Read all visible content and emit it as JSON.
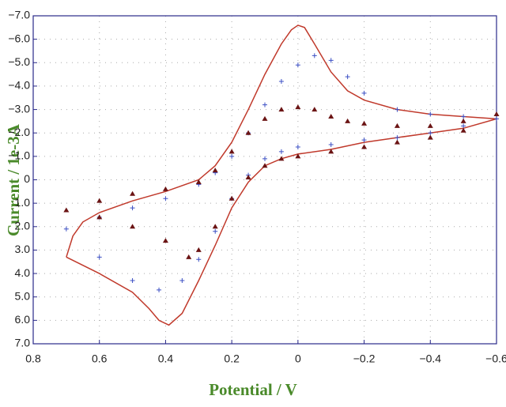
{
  "chart_data": {
    "type": "line",
    "xlabel": "Potential / V",
    "ylabel": "Current / 1e-3A",
    "xlim": [
      0.8,
      -0.6
    ],
    "xticks": [
      0.8,
      0.6,
      0.4,
      0.2,
      0,
      {
        "value": -0.2,
        "label": "−0.2"
      },
      {
        "value": -0.4,
        "label": "−0.4"
      },
      {
        "value": -0.6,
        "label": "−0.6"
      }
    ],
    "ylim": [
      7,
      -7
    ],
    "yticks": [
      {
        "value": -7,
        "label": "−7.0"
      },
      {
        "value": -6,
        "label": "−6.0"
      },
      {
        "value": -5,
        "label": "−5.0"
      },
      {
        "value": -4,
        "label": "−4.0"
      },
      {
        "value": -3,
        "label": "−3.0"
      },
      {
        "value": -2,
        "label": "−2.0"
      },
      {
        "value": -1,
        "label": "−1.0"
      },
      0,
      {
        "value": 1,
        "label": "1.0"
      },
      {
        "value": 2,
        "label": "2.0"
      },
      {
        "value": 3,
        "label": "3.0"
      },
      {
        "value": 4,
        "label": "4.0"
      },
      {
        "value": 5,
        "label": "5.0"
      },
      {
        "value": 6,
        "label": "6.0"
      },
      {
        "value": 7,
        "label": "7.0"
      }
    ],
    "grid": true,
    "series": [
      {
        "color": "#c0392b",
        "marker": "line",
        "x": [
          0.7,
          0.68,
          0.65,
          0.6,
          0.5,
          0.4,
          0.3,
          0.25,
          0.2,
          0.15,
          0.1,
          0.05,
          0.02,
          0,
          -0.02,
          -0.05,
          -0.1,
          -0.15,
          -0.2,
          -0.3,
          -0.4,
          -0.5,
          -0.6,
          -0.5,
          -0.4,
          -0.3,
          -0.2,
          -0.1,
          0,
          0.05,
          0.1,
          0.15,
          0.2,
          0.25,
          0.3,
          0.35,
          0.39,
          0.42,
          0.45,
          0.5,
          0.6,
          0.7
        ],
        "values": [
          3.3,
          2.4,
          1.8,
          1.4,
          0.9,
          0.5,
          0,
          -0.6,
          -1.6,
          -3.0,
          -4.5,
          -5.8,
          -6.4,
          -6.6,
          -6.5,
          -5.8,
          -4.6,
          -3.8,
          -3.4,
          -3.0,
          -2.8,
          -2.7,
          -2.6,
          -2.2,
          -2.0,
          -1.8,
          -1.6,
          -1.3,
          -1.1,
          -0.9,
          -0.6,
          0.1,
          1.2,
          2.8,
          4.3,
          5.7,
          6.2,
          6.0,
          5.5,
          4.8,
          4.0,
          3.3
        ]
      },
      {
        "color": "#3b4fc4",
        "marker": "plus",
        "x": [
          0.7,
          0.6,
          0.5,
          0.4,
          0.3,
          0.25,
          0.2,
          0.15,
          0.1,
          0.05,
          0,
          -0.05,
          -0.1,
          -0.15,
          -0.2,
          -0.3,
          -0.4,
          -0.5,
          -0.6,
          -0.5,
          -0.4,
          -0.3,
          -0.2,
          -0.1,
          0,
          0.05,
          0.1,
          0.15,
          0.2,
          0.25,
          0.3,
          0.35,
          0.42,
          0.5,
          0.6
        ],
        "values": [
          2.1,
          1.6,
          1.2,
          0.8,
          0.2,
          -0.3,
          -1.0,
          -2.0,
          -3.2,
          -4.2,
          -4.9,
          -5.3,
          -5.1,
          -4.4,
          -3.7,
          -3.0,
          -2.8,
          -2.7,
          -2.6,
          -2.3,
          -2.0,
          -1.8,
          -1.7,
          -1.5,
          -1.4,
          -1.2,
          -0.9,
          -0.2,
          0.8,
          2.2,
          3.4,
          4.3,
          4.7,
          4.3,
          3.3
        ]
      },
      {
        "color": "#6b1414",
        "marker": "triangle",
        "x": [
          0.7,
          0.6,
          0.5,
          0.4,
          0.3,
          0.25,
          0.2,
          0.15,
          0.1,
          0.05,
          0,
          -0.05,
          -0.1,
          -0.15,
          -0.2,
          -0.3,
          -0.4,
          -0.5,
          -0.6,
          -0.5,
          -0.4,
          -0.3,
          -0.2,
          -0.1,
          0,
          0.05,
          0.1,
          0.15,
          0.2,
          0.25,
          0.3,
          0.33,
          0.4,
          0.5,
          0.6
        ],
        "values": [
          1.3,
          0.9,
          0.6,
          0.4,
          0.1,
          -0.4,
          -1.2,
          -2.0,
          -2.6,
          -3.0,
          -3.1,
          -3.0,
          -2.7,
          -2.5,
          -2.4,
          -2.3,
          -2.3,
          -2.5,
          -2.8,
          -2.1,
          -1.8,
          -1.6,
          -1.4,
          -1.2,
          -1.0,
          -0.9,
          -0.6,
          -0.1,
          0.8,
          2.0,
          3.0,
          3.3,
          2.6,
          2.0,
          1.6
        ]
      }
    ]
  }
}
